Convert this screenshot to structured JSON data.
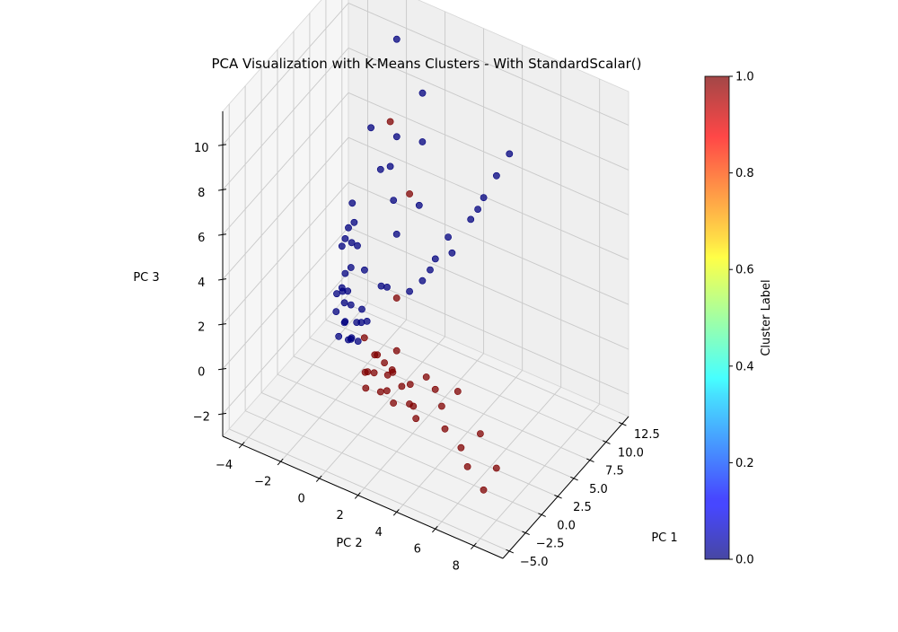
{
  "chart_data": {
    "type": "scatter",
    "title": "PCA Visualization with K-Means Clusters - With StandardScalar()",
    "axes": {
      "x": {
        "label": "PC 1",
        "range": [
          -6,
          13.5
        ],
        "ticks": [
          -5.0,
          -2.5,
          0.0,
          2.5,
          5.0,
          7.5,
          10.0,
          12.5
        ],
        "tick_labels": [
          "−5.0",
          "−2.5",
          "0.0",
          "2.5",
          "5.0",
          "7.5",
          "10.0",
          "12.5"
        ]
      },
      "y": {
        "label": "PC 2",
        "range": [
          -5,
          9.5
        ],
        "ticks": [
          -4,
          -2,
          0,
          2,
          4,
          6,
          8
        ],
        "tick_labels": [
          "−4",
          "−2",
          "0",
          "2",
          "4",
          "6",
          "8"
        ]
      },
      "z": {
        "label": "PC 3",
        "range": [
          -3,
          11.5
        ],
        "ticks": [
          -2,
          0,
          2,
          4,
          6,
          8,
          10
        ],
        "tick_labels": [
          "−2",
          "0",
          "2",
          "4",
          "6",
          "8",
          "10"
        ]
      }
    },
    "grid": true,
    "colorbar": {
      "label": "Cluster Label",
      "colormap": "jet",
      "range": [
        0.0,
        1.0
      ],
      "ticks": [
        0.0,
        0.2,
        0.4,
        0.6,
        0.8,
        1.0
      ],
      "tick_labels": [
        "0.0",
        "0.2",
        "0.4",
        "0.6",
        "0.8",
        "1.0"
      ]
    },
    "series": [
      {
        "cluster": 0,
        "color": "#00007f",
        "points": [
          [
            1.5,
            -0.5,
            0.5
          ],
          [
            2.0,
            -1.0,
            0.3
          ],
          [
            2.5,
            -1.2,
            0.0
          ],
          [
            3.0,
            -1.5,
            -0.3
          ],
          [
            3.5,
            -1.0,
            0.5
          ],
          [
            4.0,
            -2.0,
            0.0
          ],
          [
            2.2,
            -0.8,
            1.0
          ],
          [
            2.8,
            -1.3,
            1.4
          ],
          [
            3.2,
            -0.6,
            0.8
          ],
          [
            1.8,
            -1.6,
            0.2
          ],
          [
            4.5,
            -2.2,
            0.6
          ],
          [
            5.0,
            -2.5,
            1.0
          ],
          [
            3.8,
            -1.8,
            1.5
          ],
          [
            2.6,
            -2.0,
            0.9
          ],
          [
            1.2,
            -1.1,
            1.2
          ],
          [
            6.0,
            -2.8,
            0.4
          ],
          [
            7.0,
            -3.0,
            0.8
          ],
          [
            8.0,
            -3.5,
            1.5
          ],
          [
            5.5,
            -1.5,
            2.0
          ],
          [
            6.5,
            -2.2,
            2.5
          ],
          [
            4.2,
            -0.2,
            2.2
          ],
          [
            3.0,
            0.5,
            2.8
          ],
          [
            1.5,
            -0.3,
            2.0
          ],
          [
            2.4,
            -1.9,
            1.8
          ],
          [
            2.0,
            2.0,
            3.5
          ],
          [
            2.5,
            2.5,
            4.0
          ],
          [
            3.0,
            3.0,
            5.0
          ],
          [
            3.5,
            3.5,
            6.0
          ],
          [
            4.0,
            4.5,
            7.0
          ],
          [
            4.5,
            5.0,
            8.0
          ],
          [
            5.0,
            5.5,
            9.0
          ],
          [
            5.5,
            6.0,
            10.0
          ],
          [
            3.2,
            3.8,
            5.5
          ],
          [
            2.8,
            2.8,
            4.5
          ],
          [
            4.2,
            4.8,
            7.5
          ],
          [
            6.0,
            0.0,
            4.0
          ],
          [
            7.0,
            -0.5,
            5.0
          ],
          [
            8.0,
            -1.0,
            6.0
          ],
          [
            9.0,
            -1.0,
            7.0
          ],
          [
            10.0,
            0.0,
            9.0
          ],
          [
            12.0,
            -2.0,
            10.0
          ],
          [
            6.5,
            1.0,
            5.5
          ],
          [
            8.5,
            0.5,
            7.5
          ],
          [
            9.5,
            -2.0,
            5.0
          ],
          [
            11.0,
            -3.0,
            6.0
          ],
          [
            9.0,
            -3.5,
            2.0
          ],
          [
            10.0,
            -4.0,
            1.0
          ],
          [
            11.0,
            -4.0,
            0.5
          ],
          [
            12.0,
            -4.2,
            1.0
          ],
          [
            10.5,
            -3.8,
            2.5
          ],
          [
            8.5,
            -3.2,
            0.5
          ]
        ]
      },
      {
        "cluster": 1,
        "color": "#7f0000",
        "points": [
          [
            0.0,
            0.5,
            0.0
          ],
          [
            -0.5,
            1.0,
            0.3
          ],
          [
            -1.0,
            1.5,
            -0.2
          ],
          [
            0.5,
            1.2,
            0.5
          ],
          [
            -1.5,
            2.0,
            0.2
          ],
          [
            -2.0,
            2.5,
            0.0
          ],
          [
            0.2,
            0.8,
            0.8
          ],
          [
            -0.8,
            1.8,
            0.6
          ],
          [
            -1.2,
            2.2,
            1.0
          ],
          [
            0.8,
            1.5,
            0.2
          ],
          [
            -0.3,
            2.8,
            0.4
          ],
          [
            -2.5,
            3.5,
            0.5
          ],
          [
            -3.0,
            4.0,
            0.2
          ],
          [
            -2.2,
            3.0,
            1.0
          ],
          [
            -1.0,
            3.2,
            -0.2
          ],
          [
            -2.0,
            5.0,
            0.8
          ],
          [
            -3.0,
            5.5,
            0.3
          ],
          [
            -1.5,
            4.5,
            1.2
          ],
          [
            -3.5,
            6.5,
            0.0
          ],
          [
            -4.0,
            7.0,
            -0.5
          ],
          [
            -4.5,
            8.0,
            -1.0
          ],
          [
            -4.0,
            8.5,
            0.0
          ],
          [
            -3.5,
            7.5,
            1.0
          ],
          [
            -2.5,
            6.0,
            2.0
          ],
          [
            -2.0,
            4.2,
            1.8
          ],
          [
            0.0,
            2.0,
            1.5
          ],
          [
            1.0,
            0.0,
            1.0
          ],
          [
            0.5,
            0.2,
            -0.3
          ],
          [
            1.2,
            0.6,
            0.4
          ],
          [
            -0.6,
            0.6,
            -0.5
          ],
          [
            3.0,
            1.0,
            2.5
          ],
          [
            8.0,
            -1.0,
            8.0
          ],
          [
            5.0,
            1.0,
            6.5
          ]
        ]
      }
    ]
  }
}
